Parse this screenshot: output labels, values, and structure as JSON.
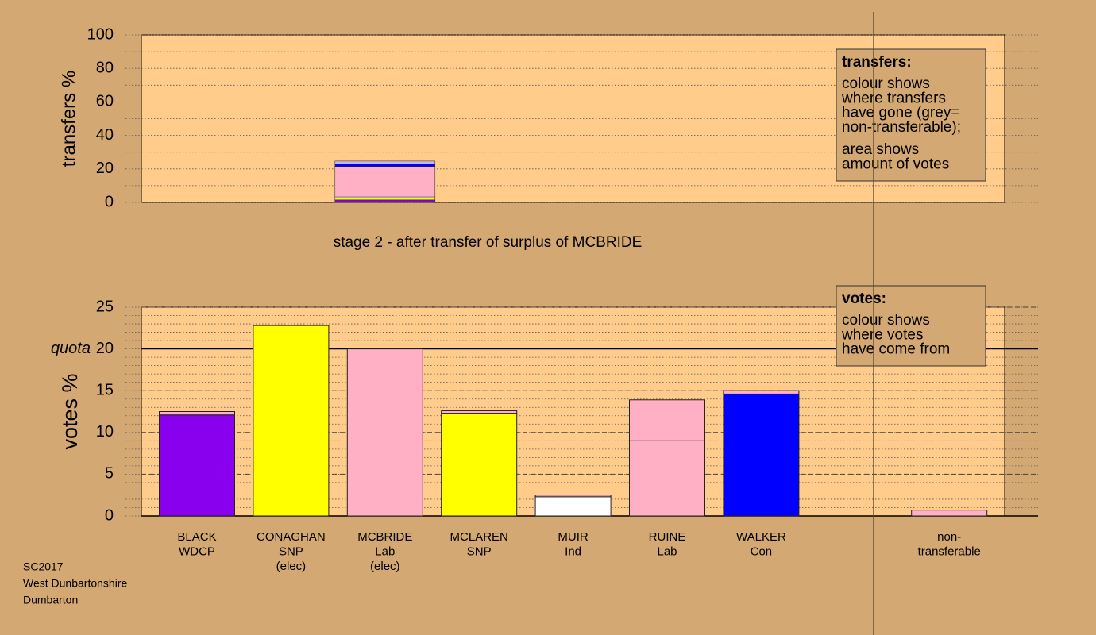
{
  "chart_data": [
    {
      "type": "bar",
      "ylabel": "transfers %",
      "ylim": [
        0,
        100
      ],
      "yticks": [
        0,
        20,
        40,
        60,
        80,
        100
      ],
      "minor_grid_step": 10,
      "caption": "stage 2 - after transfer of surplus of MCBRIDE",
      "note_title": "transfers:",
      "note_lines": [
        [
          "colour shows",
          "where transfers",
          "have gone (grey=",
          "non-transferable);"
        ],
        [
          "area shows",
          "amount of votes"
        ]
      ],
      "categories": [
        null
      ],
      "series": [
        {
          "color": "#8800ee",
          "values": [
            1.5
          ]
        },
        {
          "color": "#ffff00",
          "values": [
            1.1
          ]
        },
        {
          "color": "#ffffff",
          "values": [
            0.7
          ]
        },
        {
          "color": "#ffb0c4",
          "values": [
            18.2
          ]
        },
        {
          "color": "#0000ff",
          "values": [
            1.5
          ]
        },
        {
          "color": "#c8b8e0",
          "values": [
            1.7
          ]
        }
      ]
    },
    {
      "type": "bar",
      "ylabel": "votes %",
      "ylim": [
        0,
        25
      ],
      "yticks": [
        0,
        5,
        10,
        15,
        20,
        25
      ],
      "minor_grid_step": 1,
      "quota": 20,
      "quota_label": "quota",
      "note_title": "votes:",
      "note_lines": [
        [
          "colour shows",
          "where votes",
          "have come from"
        ]
      ],
      "categories": [
        [
          "BLACK",
          "WDCP"
        ],
        [
          "CONAGHAN",
          "SNP",
          "(elec)"
        ],
        [
          "MCBRIDE",
          "Lab",
          "(elec)"
        ],
        [
          "MCLAREN",
          "SNP"
        ],
        [
          "MUIR",
          "Ind"
        ],
        [
          "RUINE",
          "Lab"
        ],
        [
          "WALKER",
          "Con"
        ],
        null,
        [
          "non-",
          "transferable"
        ]
      ],
      "series": [
        {
          "colors": [
            "#8800ee",
            "#ffff00",
            "#ffb0c4",
            "#ffff00",
            "#ffffff",
            "#ffb0c4",
            "#0000ff",
            null,
            null
          ],
          "values": [
            12.1,
            22.8,
            20,
            12.3,
            2.3,
            9.0,
            14.6,
            null,
            null
          ]
        },
        {
          "color": "#ffb0c4",
          "values": [
            0.4,
            null,
            null,
            0.3,
            0.2,
            4.9,
            0.4,
            null,
            0.7
          ]
        }
      ]
    }
  ],
  "footer": [
    "SC2017",
    "West Dunbartonshire",
    "Dumbarton"
  ]
}
